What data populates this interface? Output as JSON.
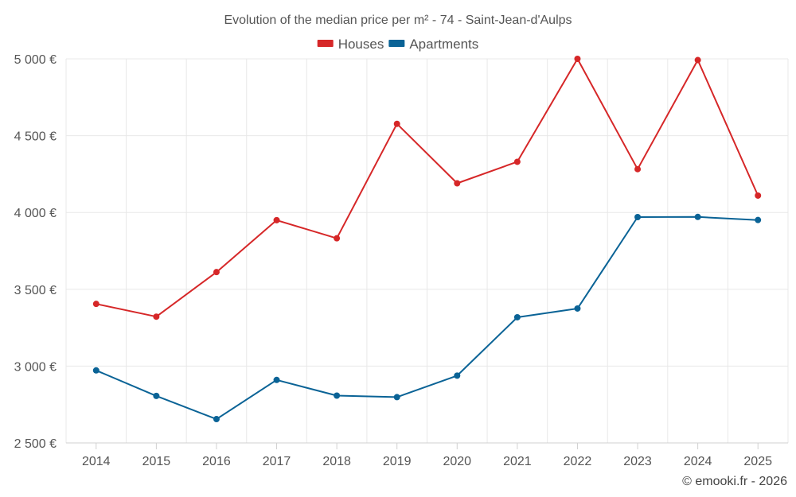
{
  "chart_data": {
    "type": "line",
    "title": "Evolution of the median price per m² - 74 - Saint-Jean-d'Aulps",
    "categories": [
      "2014",
      "2015",
      "2016",
      "2017",
      "2018",
      "2019",
      "2020",
      "2021",
      "2022",
      "2023",
      "2024",
      "2025"
    ],
    "series": [
      {
        "name": "Houses",
        "color": "#d62728",
        "values": [
          3405,
          3322,
          3612,
          3950,
          3832,
          4577,
          4190,
          4330,
          5000,
          4282,
          4992,
          4110
        ]
      },
      {
        "name": "Apartments",
        "color": "#0a6396",
        "values": [
          2972,
          2806,
          2655,
          2910,
          2808,
          2798,
          2938,
          3318,
          3375,
          3970,
          3971,
          3951
        ]
      }
    ],
    "ylim": [
      2500,
      5000
    ],
    "yticks": [
      2500,
      3000,
      3500,
      4000,
      4500,
      5000
    ],
    "ytick_labels": [
      "2 500 €",
      "3 000 €",
      "3 500 €",
      "4 000 €",
      "4 500 €",
      "5 000 €"
    ],
    "xlabel": "",
    "ylabel": "",
    "grid": true,
    "legend_position": "top-center"
  },
  "credit": "© emooki.fr - 2026"
}
